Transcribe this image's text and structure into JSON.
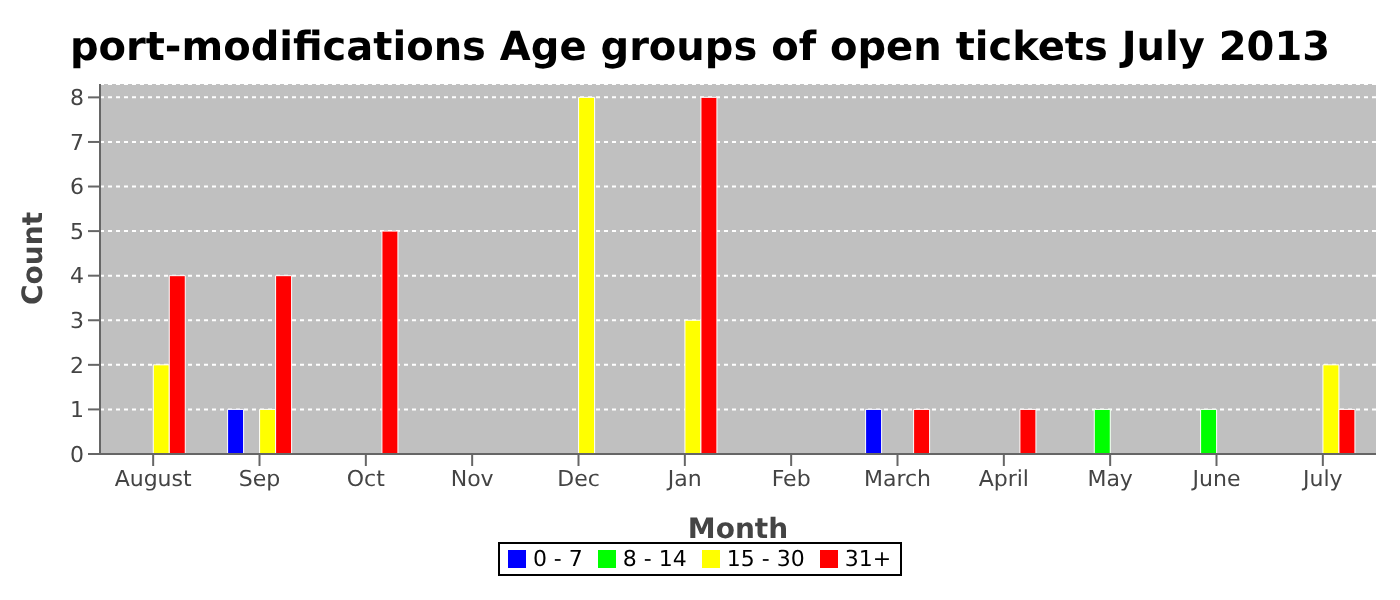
{
  "chart_data": {
    "type": "bar",
    "title": "port-modifications Age groups of open tickets July 2013",
    "xlabel": "Month",
    "ylabel": "Count",
    "categories": [
      "August",
      "Sep",
      "Oct",
      "Nov",
      "Dec",
      "Jan",
      "Feb",
      "March",
      "April",
      "May",
      "June",
      "July"
    ],
    "series": [
      {
        "name": "0 - 7",
        "color": "#0000ff",
        "values": [
          0,
          1,
          0,
          0,
          0,
          0,
          0,
          1,
          0,
          0,
          0,
          0
        ]
      },
      {
        "name": "8 - 14",
        "color": "#00ff00",
        "values": [
          0,
          0,
          0,
          0,
          0,
          0,
          0,
          0,
          0,
          1,
          1,
          0
        ]
      },
      {
        "name": "15 - 30",
        "color": "#ffff00",
        "values": [
          2,
          1,
          0,
          0,
          8,
          3,
          0,
          0,
          0,
          0,
          0,
          2
        ]
      },
      {
        "name": "31+",
        "color": "#ff0000",
        "values": [
          4,
          4,
          5,
          0,
          0,
          8,
          0,
          1,
          1,
          0,
          0,
          1
        ]
      }
    ],
    "ylim": [
      0,
      8.3
    ],
    "yticks": [
      0,
      1,
      2,
      3,
      4,
      5,
      6,
      7,
      8
    ],
    "grid": "y",
    "legend": "bottom"
  }
}
